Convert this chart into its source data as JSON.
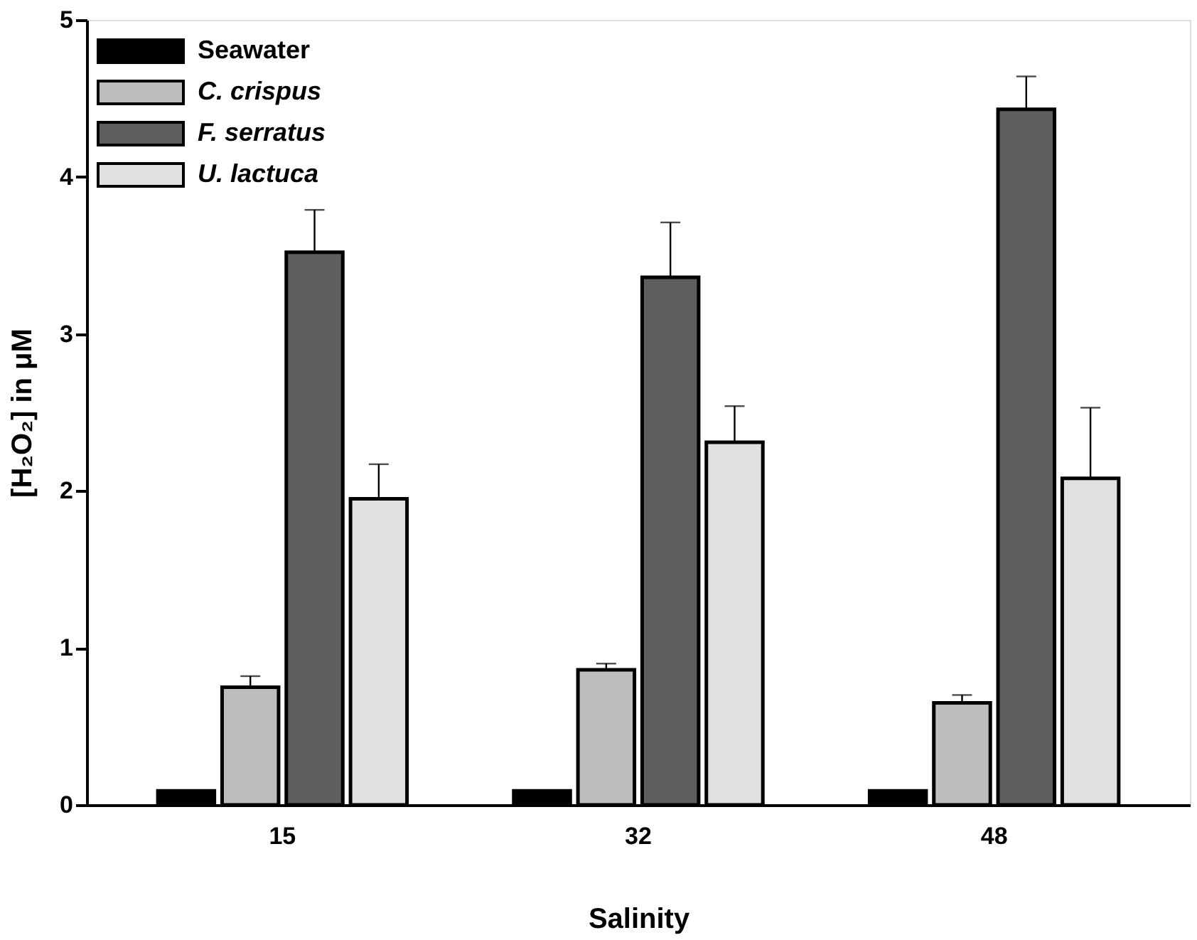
{
  "chart_data": {
    "type": "bar",
    "xlabel": "Salinity",
    "ylabel": "[H₂O₂] in μM",
    "categories": [
      "15",
      "32",
      "48"
    ],
    "series": [
      {
        "name": "Seawater",
        "color": "#000000",
        "values": [
          0.09,
          0.09,
          0.09
        ]
      },
      {
        "name": "C. crispus",
        "color": "#bdbdbd",
        "values": [
          0.75,
          0.86,
          0.65
        ],
        "errors": [
          [
            0.75,
            0.82
          ],
          [
            0.86,
            0.9
          ],
          [
            0.65,
            0.7
          ]
        ]
      },
      {
        "name": "F. serratus",
        "color": "#5e5e5e",
        "values": [
          3.52,
          3.36,
          4.43
        ],
        "errors": [
          [
            3.52,
            3.79
          ],
          [
            3.36,
            3.71
          ],
          [
            4.43,
            4.64
          ]
        ]
      },
      {
        "name": "U. lactuca",
        "color": "#e0e0e0",
        "values": [
          1.95,
          2.31,
          2.08
        ],
        "errors": [
          [
            1.95,
            2.17
          ],
          [
            2.31,
            2.54
          ],
          [
            2.08,
            2.53
          ]
        ]
      }
    ],
    "ylim": [
      0,
      5
    ],
    "yticks": [
      0,
      1,
      2,
      3,
      4,
      5
    ],
    "grid": false,
    "legend": "top left"
  }
}
